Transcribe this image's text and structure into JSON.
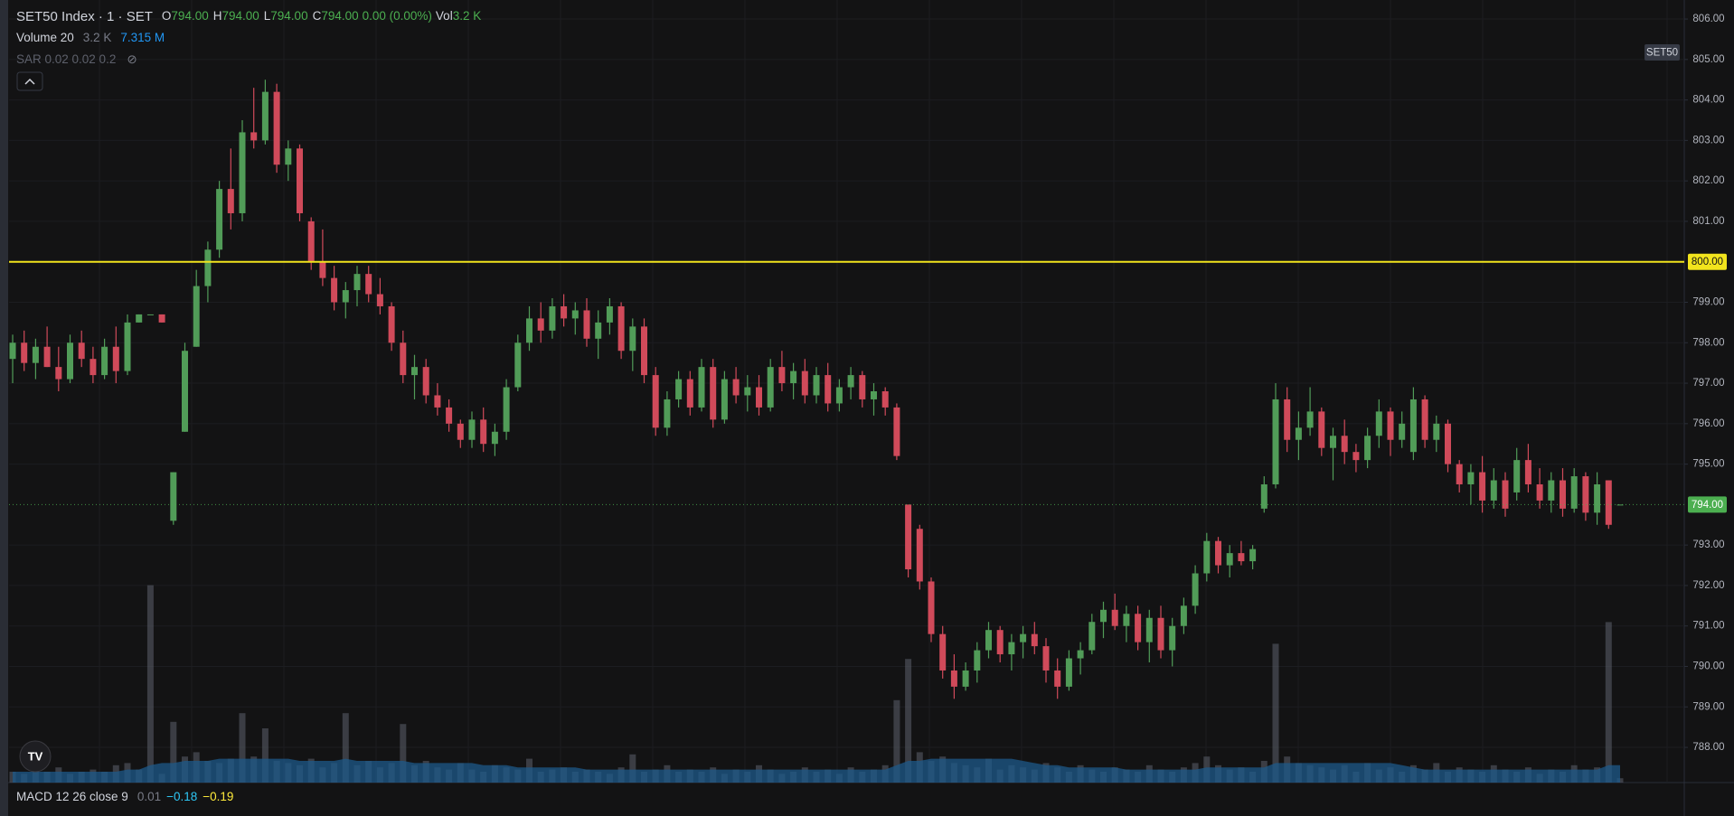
{
  "chart_data": {
    "type": "candlestick",
    "up_color": "#519c58",
    "down_color": "#d04a5a",
    "volume_color": "#5d606b",
    "volume_ma_color": "#1d5a8a",
    "ylim": [
      787.13,
      806.47
    ],
    "y2lim": [
      0,
      100
    ],
    "grid": true,
    "yticks": [
      {
        "value": 788,
        "label": "788.00"
      },
      {
        "value": 789,
        "label": "789.00"
      },
      {
        "value": 790,
        "label": "790.00"
      },
      {
        "value": 791,
        "label": "791.00"
      },
      {
        "value": 792,
        "label": "792.00"
      },
      {
        "value": 793,
        "label": "793.00"
      },
      {
        "value": 795,
        "label": "795.00"
      },
      {
        "value": 796,
        "label": "796.00"
      },
      {
        "value": 797,
        "label": "797.00"
      },
      {
        "value": 798,
        "label": "798.00"
      },
      {
        "value": 799,
        "label": "799.00"
      },
      {
        "value": 801,
        "label": "801.00"
      },
      {
        "value": 802,
        "label": "802.00"
      },
      {
        "value": 803,
        "label": "803.00"
      },
      {
        "value": 804,
        "label": "804.00"
      },
      {
        "value": 805,
        "label": "805.00"
      },
      {
        "value": 806,
        "label": "806.00"
      }
    ],
    "hlines": [
      {
        "value": 800,
        "label": "800.00",
        "color": "#f2e41d",
        "style": "solid"
      },
      {
        "value": 794,
        "label": "794.00",
        "color": "#4caf50",
        "style": "dotted"
      }
    ],
    "open": [
      797.6,
      798.0,
      797.5,
      797.9,
      797.4,
      797.1,
      798.0,
      797.6,
      797.2,
      797.9,
      797.3,
      798.5,
      798.7,
      798.7,
      793.6,
      795.8,
      797.9,
      799.4,
      800.3,
      801.8,
      801.2,
      803.2,
      803.0,
      804.2,
      802.4,
      802.8,
      801.0,
      800.0,
      799.6,
      799.0,
      799.3,
      799.7,
      799.2,
      798.9,
      798.0,
      797.2,
      797.4,
      796.7,
      796.4,
      796.0,
      795.6,
      796.1,
      795.5,
      795.8,
      796.9,
      798.0,
      798.6,
      798.3,
      798.9,
      798.6,
      798.8,
      798.1,
      798.5,
      798.9,
      797.8,
      798.4,
      797.2,
      795.9,
      796.6,
      797.1,
      796.4,
      797.4,
      796.1,
      797.1,
      796.7,
      796.9,
      796.4,
      797.4,
      797.0,
      797.3,
      796.7,
      797.2,
      796.5,
      796.9,
      797.2,
      796.6,
      796.8,
      796.4,
      794.0,
      793.4,
      792.1,
      790.8,
      789.9,
      789.5,
      789.9,
      790.4,
      790.9,
      790.3,
      790.6,
      790.8,
      790.5,
      789.9,
      789.5,
      790.2,
      790.4,
      791.1,
      791.4,
      791.0,
      791.3,
      790.6,
      791.2,
      790.4,
      791.0,
      791.5,
      792.3,
      793.1,
      792.5,
      792.8,
      792.6,
      793.9,
      794.5,
      796.6,
      795.6,
      795.9,
      796.3,
      795.4,
      795.7,
      795.3,
      795.1,
      795.7,
      796.3,
      795.6,
      795.3,
      796.6,
      795.6,
      796.0,
      795.0,
      794.5,
      794.8,
      794.1,
      794.6,
      794.3,
      795.1,
      794.5,
      794.1,
      794.6,
      793.9,
      794.7,
      793.8,
      794.6,
      794.0
    ],
    "high": [
      798.2,
      798.3,
      798.1,
      798.4,
      797.9,
      798.2,
      798.3,
      797.9,
      798.1,
      798.4,
      798.7,
      798.7,
      798.7,
      798.7,
      794.8,
      798.0,
      799.8,
      800.5,
      802.0,
      802.8,
      803.5,
      804.3,
      804.5,
      804.4,
      803.0,
      802.9,
      801.1,
      800.8,
      799.9,
      799.5,
      799.9,
      799.9,
      799.6,
      799.0,
      798.3,
      797.7,
      797.6,
      797.0,
      796.6,
      796.1,
      796.3,
      796.4,
      796.0,
      797.1,
      798.2,
      798.9,
      799.0,
      799.1,
      799.2,
      799.0,
      799.1,
      798.8,
      799.1,
      799.0,
      798.6,
      798.6,
      797.4,
      796.8,
      797.3,
      797.3,
      797.6,
      797.6,
      797.3,
      797.4,
      797.2,
      797.2,
      797.6,
      797.8,
      797.5,
      797.6,
      797.4,
      797.5,
      797.1,
      797.4,
      797.3,
      797.0,
      796.9,
      796.5,
      794.0,
      793.5,
      792.2,
      791.0,
      790.3,
      790.1,
      790.6,
      791.1,
      791.0,
      790.8,
      791.0,
      791.1,
      790.7,
      790.2,
      790.4,
      790.6,
      791.3,
      791.6,
      791.8,
      791.5,
      791.5,
      791.4,
      791.5,
      791.2,
      791.7,
      792.5,
      793.3,
      793.2,
      793.0,
      793.1,
      793.0,
      794.7,
      797.0,
      796.9,
      796.3,
      796.9,
      796.4,
      795.9,
      796.1,
      795.5,
      795.9,
      796.6,
      796.4,
      796.3,
      796.9,
      796.7,
      796.2,
      796.1,
      795.1,
      795.0,
      795.2,
      794.9,
      794.8,
      795.4,
      795.5,
      794.9,
      794.8,
      794.9,
      794.9,
      794.8,
      794.8,
      794.6,
      794.0
    ],
    "low": [
      797.0,
      797.3,
      797.1,
      797.4,
      796.8,
      797.0,
      797.4,
      797.0,
      797.1,
      797.0,
      797.2,
      798.5,
      798.7,
      798.5,
      793.5,
      795.8,
      797.9,
      799.0,
      800.1,
      800.8,
      801.0,
      802.8,
      802.9,
      802.2,
      802.0,
      801.0,
      799.8,
      799.4,
      798.8,
      798.6,
      798.9,
      799.0,
      798.7,
      797.8,
      797.0,
      796.6,
      796.5,
      796.2,
      795.8,
      795.4,
      795.4,
      795.3,
      795.2,
      795.6,
      796.8,
      797.8,
      798.0,
      798.1,
      798.4,
      798.2,
      797.9,
      797.6,
      798.2,
      797.6,
      797.3,
      797.0,
      795.7,
      795.7,
      796.4,
      796.2,
      796.3,
      795.9,
      796.0,
      796.5,
      796.3,
      796.2,
      796.3,
      796.8,
      796.6,
      796.5,
      796.5,
      796.3,
      796.3,
      796.6,
      796.4,
      796.2,
      796.2,
      795.1,
      792.2,
      791.9,
      790.6,
      789.7,
      789.2,
      789.4,
      789.6,
      790.2,
      790.1,
      789.9,
      790.2,
      790.3,
      789.6,
      789.2,
      789.4,
      789.8,
      790.3,
      790.7,
      790.9,
      790.6,
      790.4,
      790.1,
      790.2,
      790.0,
      790.8,
      791.3,
      792.1,
      792.3,
      792.2,
      792.5,
      792.4,
      793.8,
      794.4,
      795.3,
      795.1,
      795.7,
      795.2,
      794.6,
      795.0,
      794.8,
      794.9,
      795.4,
      795.2,
      795.4,
      795.1,
      795.4,
      795.3,
      794.8,
      794.3,
      794.0,
      793.8,
      793.9,
      793.7,
      794.1,
      794.3,
      793.9,
      793.8,
      793.7,
      793.8,
      793.6,
      793.5,
      793.4,
      794.0
    ],
    "close": [
      798.0,
      797.5,
      797.9,
      797.4,
      797.1,
      798.0,
      797.6,
      797.2,
      797.9,
      797.3,
      798.5,
      798.7,
      798.7,
      798.5,
      794.8,
      797.8,
      799.4,
      800.3,
      801.8,
      801.2,
      803.2,
      803.0,
      804.2,
      802.4,
      802.8,
      801.2,
      800.0,
      799.6,
      799.0,
      799.3,
      799.7,
      799.2,
      798.9,
      798.0,
      797.2,
      797.4,
      796.7,
      796.4,
      796.0,
      795.6,
      796.1,
      795.5,
      795.8,
      796.9,
      798.0,
      798.6,
      798.3,
      798.9,
      798.6,
      798.8,
      798.1,
      798.5,
      798.9,
      797.8,
      798.4,
      797.2,
      795.9,
      796.6,
      797.1,
      796.4,
      797.4,
      796.1,
      797.1,
      796.7,
      796.9,
      796.4,
      797.4,
      797.0,
      797.3,
      796.7,
      797.2,
      796.5,
      796.9,
      797.2,
      796.6,
      796.8,
      796.4,
      795.2,
      792.4,
      792.1,
      790.8,
      789.9,
      789.5,
      789.9,
      790.4,
      790.9,
      790.3,
      790.6,
      790.8,
      790.5,
      789.9,
      789.5,
      790.2,
      790.4,
      791.1,
      791.4,
      791.0,
      791.3,
      790.6,
      791.2,
      790.4,
      791.0,
      791.5,
      792.3,
      793.1,
      792.5,
      792.8,
      792.6,
      792.9,
      794.5,
      796.6,
      795.6,
      795.9,
      796.3,
      795.4,
      795.7,
      795.3,
      795.1,
      795.7,
      796.3,
      795.6,
      796.0,
      796.6,
      795.6,
      796.0,
      795.0,
      794.5,
      794.8,
      794.1,
      794.6,
      793.9,
      795.1,
      794.5,
      794.1,
      794.6,
      793.9,
      794.7,
      793.8,
      794.5,
      793.5,
      794.0
    ],
    "volume": [
      5,
      4,
      6,
      5,
      7,
      4,
      5,
      6,
      5,
      8,
      9,
      6,
      91,
      4,
      28,
      12,
      14,
      10,
      9,
      11,
      32,
      12,
      25,
      10,
      9,
      8,
      11,
      7,
      9,
      32,
      8,
      10,
      7,
      9,
      27,
      8,
      10,
      7,
      6,
      9,
      6,
      5,
      8,
      7,
      6,
      11,
      5,
      6,
      7,
      5,
      6,
      5,
      4,
      7,
      13,
      5,
      6,
      8,
      5,
      6,
      5,
      7,
      4,
      6,
      5,
      8,
      6,
      4,
      5,
      7,
      5,
      6,
      4,
      7,
      5,
      6,
      8,
      38,
      57,
      14,
      10,
      12,
      9,
      8,
      7,
      11,
      6,
      8,
      7,
      6,
      9,
      7,
      5,
      8,
      6,
      5,
      7,
      6,
      5,
      8,
      6,
      5,
      7,
      9,
      12,
      8,
      6,
      7,
      5,
      10,
      64,
      12,
      9,
      8,
      7,
      6,
      8,
      5,
      9,
      6,
      7,
      5,
      8,
      6,
      9,
      5,
      7,
      6,
      5,
      8,
      6,
      5,
      7,
      4,
      6,
      5,
      8,
      6,
      7,
      74,
      2
    ],
    "volume_ma": [
      5,
      5,
      5,
      5,
      5,
      5,
      5,
      5,
      5,
      5,
      6,
      6,
      8,
      9,
      9,
      10,
      10,
      10,
      11,
      11,
      11,
      11,
      11,
      11,
      11,
      10,
      10,
      10,
      10,
      11,
      10,
      10,
      10,
      10,
      10,
      9,
      9,
      9,
      9,
      9,
      9,
      8,
      8,
      8,
      7,
      7,
      7,
      7,
      7,
      7,
      6,
      6,
      6,
      6,
      6,
      6,
      6,
      6,
      6,
      6,
      6,
      6,
      6,
      6,
      6,
      6,
      6,
      6,
      6,
      6,
      6,
      6,
      6,
      6,
      6,
      6,
      6,
      8,
      10,
      10,
      11,
      11,
      11,
      11,
      11,
      11,
      11,
      11,
      10,
      9,
      8,
      8,
      7,
      7,
      7,
      7,
      7,
      6,
      6,
      6,
      6,
      6,
      6,
      6,
      7,
      7,
      7,
      7,
      7,
      7,
      9,
      9,
      9,
      9,
      9,
      9,
      9,
      9,
      9,
      9,
      9,
      8,
      7,
      6,
      6,
      6,
      6,
      6,
      6,
      6,
      6,
      6,
      6,
      6,
      6,
      6,
      6,
      6,
      6,
      8,
      8
    ]
  },
  "ui": {
    "symbol": "SET50 Index · 1 · SET",
    "ohlc": [
      {
        "label": "O",
        "value": "794.00"
      },
      {
        "label": "H",
        "value": "794.00"
      },
      {
        "label": "L",
        "value": "794.00"
      },
      {
        "label": "C",
        "value": "794.00"
      }
    ],
    "change": "0.00 (0.00%)",
    "vol_label": "Vol",
    "vol_value": "3.2 K",
    "volume_indicator": {
      "name": "Volume 20",
      "value": "3.2 K",
      "ma": "7.315 M"
    },
    "sar": "SAR 0.02 0.02 0.2",
    "badge": "SET50",
    "macd": {
      "name": "MACD 12 26 close 9",
      "values": [
        "0.01",
        "−0.18",
        "−0.19"
      ]
    }
  }
}
